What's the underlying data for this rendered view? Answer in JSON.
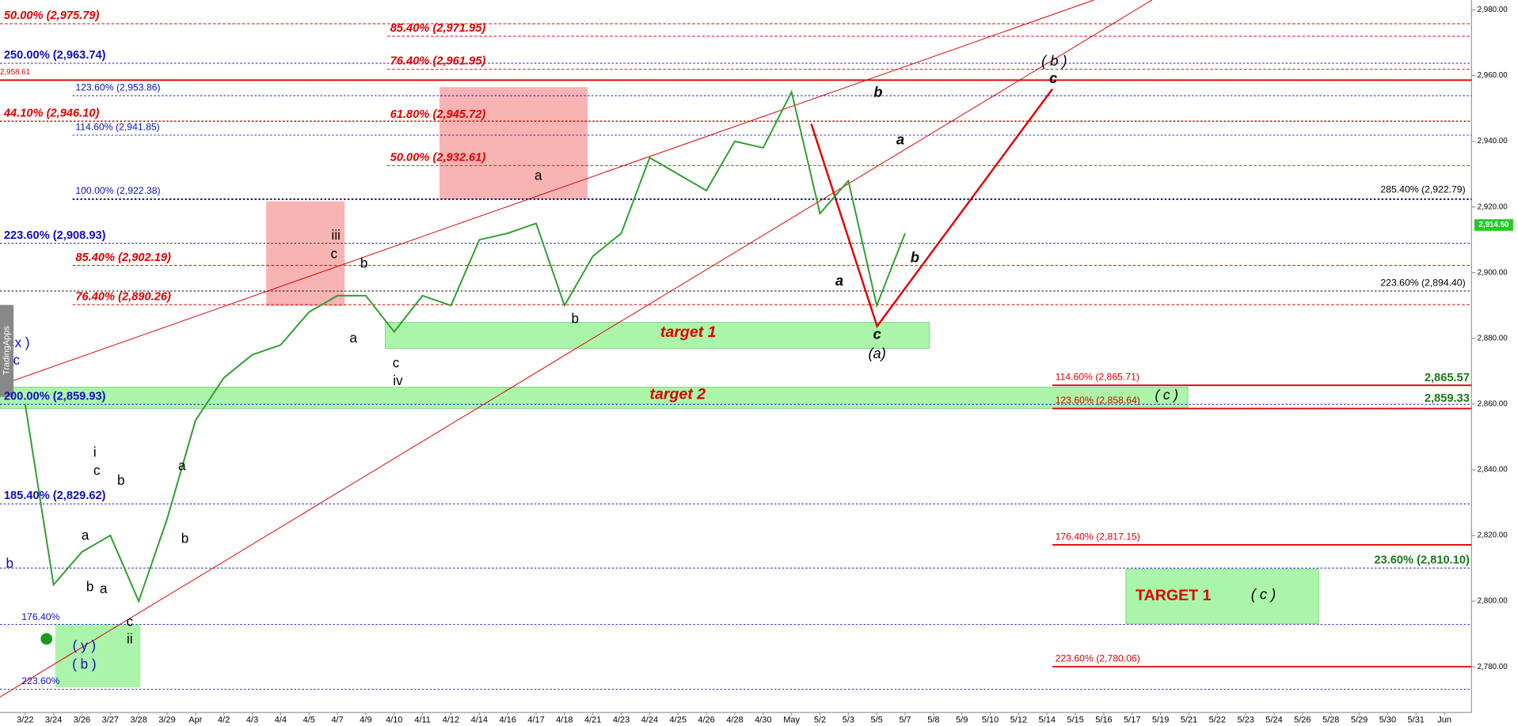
{
  "chart_data": {
    "type": "line",
    "color": "#2e9e2e",
    "categories": [
      "3/22",
      "3/24",
      "3/26",
      "3/27",
      "3/28",
      "3/29",
      "Apr",
      "4/2",
      "4/3",
      "4/4",
      "4/5",
      "4/7",
      "4/9",
      "4/10",
      "4/11",
      "4/12",
      "4/14",
      "4/16",
      "4/17",
      "4/18",
      "4/21",
      "4/23",
      "4/24",
      "4/25",
      "4/26",
      "4/28",
      "4/30",
      "May",
      "5/2",
      "5/3",
      "5/5",
      "5/7",
      "5/8",
      "5/9",
      "5/10",
      "5/12",
      "5/14",
      "5/15",
      "5/16",
      "5/17",
      "5/19",
      "5/21",
      "5/22",
      "5/23",
      "5/24",
      "5/26",
      "5/28",
      "5/29",
      "5/30",
      "5/31",
      "Jun"
    ],
    "values": [
      2860,
      2805,
      2815,
      2820,
      2800,
      2825,
      2855,
      2868,
      2875,
      2878,
      2888,
      2893,
      2893,
      2882,
      2893,
      2890,
      2910,
      2912,
      2915,
      2890,
      2905,
      2912,
      2935,
      2930,
      2925,
      2940,
      2938,
      2955,
      2918,
      2928,
      2890,
      2912,
      null,
      null,
      null,
      null,
      null,
      null,
      null,
      null,
      null,
      null,
      null,
      null,
      null,
      null,
      null,
      null,
      null,
      null,
      null
    ],
    "ylim": [
      2762,
      2983
    ],
    "yticks": [
      {
        "value": 2780,
        "label": "2,780.00"
      },
      {
        "value": 2800,
        "label": "2,800.00"
      },
      {
        "value": 2820,
        "label": "2,820.00"
      },
      {
        "value": 2840,
        "label": "2,840.00"
      },
      {
        "value": 2860,
        "label": "2,860.00"
      },
      {
        "value": 2880,
        "label": "2,880.00"
      },
      {
        "value": 2900,
        "label": "2,900.00"
      },
      {
        "value": 2920,
        "label": "2,920.00"
      },
      {
        "value": 2940,
        "label": "2,940.00"
      },
      {
        "value": 2960,
        "label": "2,960.00"
      },
      {
        "value": 2980,
        "label": "2,980.00"
      }
    ],
    "last_price": {
      "value": 2914.5,
      "label": "2,914.50"
    },
    "levels": [
      {
        "value": 2975.79,
        "label": "50.00% (2,975.79)",
        "color": "#e00000"
      },
      {
        "value": 2971.95,
        "label": "85.40% (2,971.95)",
        "color": "#e00000"
      },
      {
        "value": 2963.74,
        "label": "250.00% (2,963.74)",
        "color": "#1010c0"
      },
      {
        "value": 2961.95,
        "label": "76.40% (2,961.95)",
        "color": "#e00000"
      },
      {
        "value": 2958.61,
        "label": "2,958.61",
        "color": "#e00000"
      },
      {
        "value": 2953.86,
        "label": "123.60% (2,953.86)",
        "color": "#1010c0"
      },
      {
        "value": 2946.1,
        "label": "44.10% (2,946.10)",
        "color": "#e00000"
      },
      {
        "value": 2945.72,
        "label": "61.80% (2,945.72)",
        "color": "#e00000"
      },
      {
        "value": 2941.85,
        "label": "114.60% (2,941.85)",
        "color": "#1010c0"
      },
      {
        "value": 2932.61,
        "label": "50.00% (2,932.61)",
        "color": "#e00000"
      },
      {
        "value": 2922.79,
        "label": "285.40% (2,922.79)",
        "color": "#000000"
      },
      {
        "value": 2922.38,
        "label": "100.00% (2,922.38)",
        "color": "#1010c0"
      },
      {
        "value": 2908.93,
        "label": "223.60% (2,908.93)",
        "color": "#1010c0"
      },
      {
        "value": 2902.19,
        "label": "85.40% (2,902.19)",
        "color": "#e00000"
      },
      {
        "value": 2894.4,
        "label": "223.60% (2,894.40)",
        "color": "#000000"
      },
      {
        "value": 2890.26,
        "label": "76.40% (2,890.26)",
        "color": "#e00000"
      },
      {
        "value": 2865.71,
        "label": "114.60% (2,865.71)",
        "color": "#e00000"
      },
      {
        "value": 2865.57,
        "label": "2,865.57",
        "color": "#1a7a1a"
      },
      {
        "value": 2859.93,
        "label": "200.00% (2,859.93)",
        "color": "#1010c0"
      },
      {
        "value": 2858.64,
        "label": "123.60% (2,858.64)",
        "color": "#e00000"
      },
      {
        "value": 2859.33,
        "label": "2,859.33",
        "color": "#1a7a1a"
      },
      {
        "value": 2829.62,
        "label": "185.40% (2,829.62)",
        "color": "#1010c0"
      },
      {
        "value": 2817.15,
        "label": "176.40% (2,817.15)",
        "color": "#e00000"
      },
      {
        "value": 2810.1,
        "label": "23.60% (2,810.10)",
        "color": "#1a7a1a"
      },
      {
        "value": 2780.06,
        "label": "223.60% (2,780.06)",
        "color": "#e00000"
      }
    ],
    "annotations": [
      {
        "text": "a",
        "color": "#000"
      },
      {
        "text": "iii",
        "color": "#000"
      },
      {
        "text": "c",
        "color": "#000"
      },
      {
        "text": "b",
        "color": "#000"
      },
      {
        "text": "a",
        "color": "#000"
      },
      {
        "text": "c",
        "color": "#000"
      },
      {
        "text": "iv",
        "color": "#000"
      },
      {
        "text": "b",
        "color": "#000"
      },
      {
        "text": "b",
        "color": "#000"
      },
      {
        "text": "a",
        "color": "#000"
      },
      {
        "text": "a",
        "color": "#000"
      },
      {
        "text": "b",
        "color": "#000"
      },
      {
        "text": "c",
        "color": "#000"
      },
      {
        "text": "(a)",
        "color": "#000"
      },
      {
        "text": "( b )",
        "color": "#000"
      },
      {
        "text": "c",
        "color": "#000"
      },
      {
        "text": "target 1",
        "color": "#e00000"
      },
      {
        "text": "target 2",
        "color": "#e00000"
      },
      {
        "text": "( c )",
        "color": "#000"
      },
      {
        "text": "TARGET 1",
        "color": "#e00000"
      },
      {
        "text": "( c )",
        "color": "#000"
      },
      {
        "text": "x )",
        "color": "#1010c0"
      },
      {
        "text": "c",
        "color": "#1010c0"
      },
      {
        "text": "i",
        "color": "#000"
      },
      {
        "text": "c",
        "color": "#000"
      },
      {
        "text": "b",
        "color": "#000"
      },
      {
        "text": "a",
        "color": "#000"
      },
      {
        "text": "a",
        "color": "#000"
      },
      {
        "text": "b",
        "color": "#000"
      },
      {
        "text": "b",
        "color": "#000"
      },
      {
        "text": "a",
        "color": "#000"
      },
      {
        "text": "c",
        "color": "#000"
      },
      {
        "text": "ii",
        "color": "#000"
      },
      {
        "text": "( y )",
        "color": "#1010c0"
      },
      {
        "text": "( b )",
        "color": "#1010c0"
      },
      {
        "text": "b",
        "color": "#1010c0"
      },
      {
        "text": "176.40%",
        "color": "#1010c0"
      },
      {
        "text": "223.60%",
        "color": "#1010c0"
      },
      {
        "text": "TradingApps",
        "color": "#fff"
      }
    ]
  }
}
